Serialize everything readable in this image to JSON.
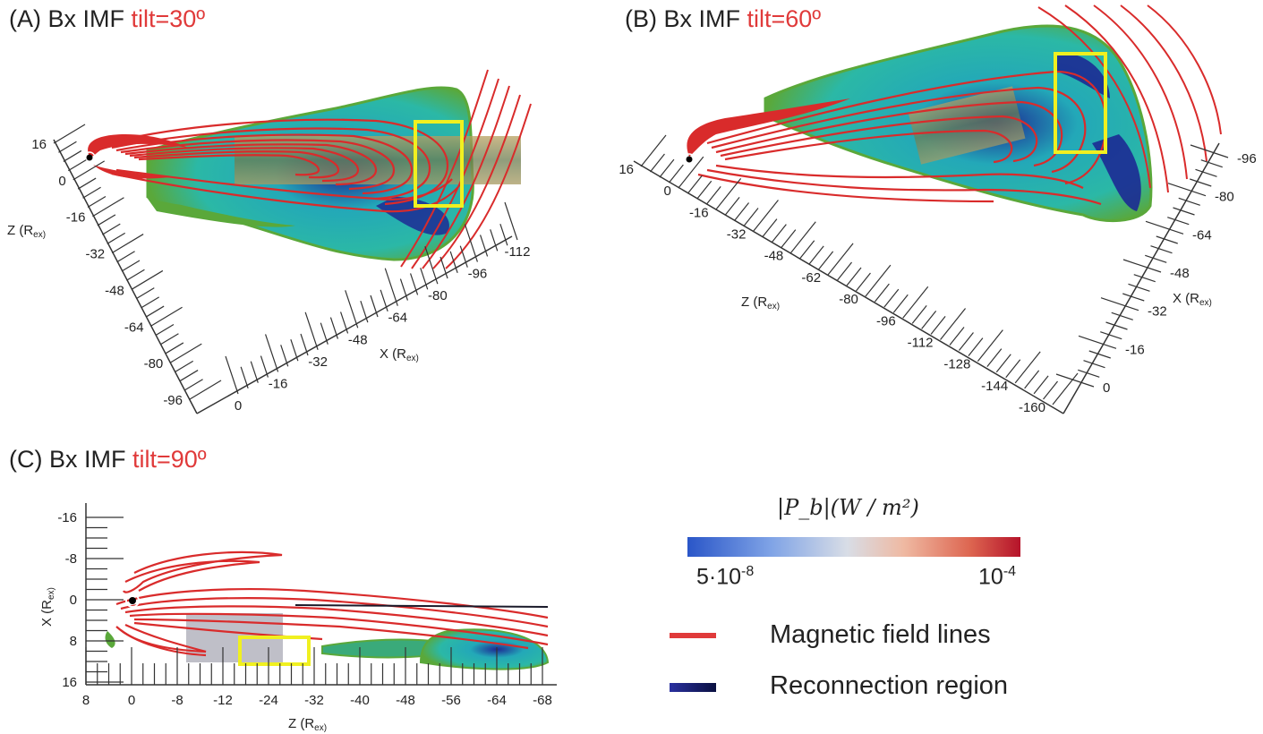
{
  "panels": {
    "a": {
      "title": "(A) Bx IMF ",
      "tilt": "tilt=30º",
      "z_axis_label": "Z (R",
      "x_axis_label": "X (R",
      "z_ticks": [
        "16",
        "0",
        "-16",
        "-32",
        "-48",
        "-64",
        "-80",
        "-96"
      ],
      "x_ticks": [
        "0",
        "-16",
        "-32",
        "-48",
        "-64",
        "-80",
        "-96",
        "-112"
      ]
    },
    "b": {
      "title": "(B) Bx IMF ",
      "tilt": "tilt=60º",
      "z_axis_label": "Z (R",
      "x_axis_label": "X (R",
      "z_ticks": [
        "16",
        "0",
        "-16",
        "-32",
        "-48",
        "-62",
        "-80",
        "-96",
        "-112",
        "-128",
        "-144",
        "-160"
      ],
      "x_ticks": [
        "0",
        "-16",
        "-32",
        "-48",
        "-64",
        "-80",
        "-96"
      ]
    },
    "c": {
      "title": "(C) Bx IMF ",
      "tilt": "tilt=90º",
      "x_axis_label": "X (R",
      "z_axis_label": "Z (R",
      "x_ticks": [
        "-16",
        "-8",
        "0",
        "8",
        "16"
      ],
      "z_ticks": [
        "8",
        "0",
        "-8",
        "-12",
        "-24",
        "-32",
        "-40",
        "-48",
        "-56",
        "-64",
        "-68"
      ]
    }
  },
  "axis_unit_sub": "ex)",
  "colorbar": {
    "title": "|P_b|(W / m²)",
    "min_label": "5·10",
    "min_exp": "-8",
    "max_label": "10",
    "max_exp": "-4",
    "colors": [
      "#2a56c8",
      "#d8dde6",
      "#b5132a"
    ]
  },
  "legend": {
    "field_lines": "Magnetic field lines",
    "field_lines_color": "#e03a3a",
    "reconnection": "Reconnection region",
    "reconnection_color": "#1d2a8c"
  },
  "colors": {
    "field_line": "#d92b2b",
    "highlight_box": "#f0f020",
    "envelope_outer": "#5aa83a",
    "envelope_inner": "#22b5b5",
    "core": "#1c2a94"
  }
}
